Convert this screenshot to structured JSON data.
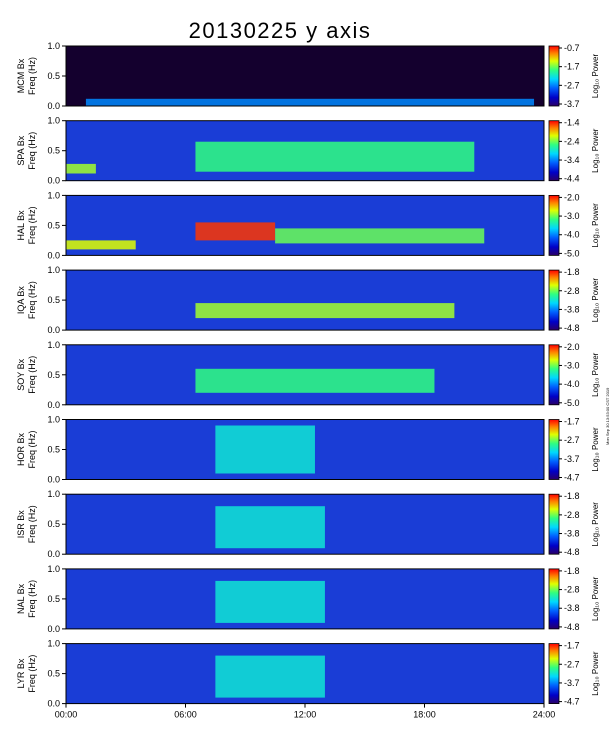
{
  "chart_data": {
    "type": "heatmap",
    "title": "20130225 y axis",
    "xlabel": "",
    "xlim": [
      0,
      24
    ],
    "x_ticks": [
      {
        "value": 0,
        "label": "00:00"
      },
      {
        "value": 6,
        "label": "06:00"
      },
      {
        "value": 12,
        "label": "12:00"
      },
      {
        "value": 18,
        "label": "18:00"
      },
      {
        "value": 24,
        "label": "24:00"
      }
    ],
    "ylim": [
      0,
      1.0
    ],
    "y_ticks": [
      "0.0",
      "0.5",
      "1.0"
    ],
    "ylabel_suffix": "Freq (Hz)",
    "colorbar_label": "Log₁₀ Power",
    "side_stamp": "Mon Sep 30 13:53:00 CST 2019",
    "panels": [
      {
        "station": "MCM Bx",
        "cbar_ticks": [
          "-0.7",
          "-1.7",
          "-2.7",
          "-3.7"
        ],
        "events": [
          {
            "t0": 1.0,
            "t1": 23.5,
            "f0": 0.0,
            "f1": 0.12,
            "level": 0.35
          }
        ]
      },
      {
        "station": "SPA Bx",
        "cbar_ticks": [
          "-1.4",
          "-2.4",
          "-3.4",
          "-4.4"
        ],
        "events": [
          {
            "t0": 0.0,
            "t1": 1.5,
            "f0": 0.12,
            "f1": 0.28,
            "level": 0.7
          },
          {
            "t0": 6.5,
            "t1": 20.5,
            "f0": 0.15,
            "f1": 0.65,
            "level": 0.6
          }
        ]
      },
      {
        "station": "HAL Bx",
        "cbar_ticks": [
          "-2.0",
          "-3.0",
          "-4.0",
          "-5.0"
        ],
        "events": [
          {
            "t0": 0.0,
            "t1": 3.5,
            "f0": 0.1,
            "f1": 0.25,
            "level": 0.75
          },
          {
            "t0": 6.5,
            "t1": 10.5,
            "f0": 0.25,
            "f1": 0.55,
            "level": 0.95
          },
          {
            "t0": 10.5,
            "t1": 21.0,
            "f0": 0.2,
            "f1": 0.45,
            "level": 0.65
          }
        ]
      },
      {
        "station": "IQA Bx",
        "cbar_ticks": [
          "-1.8",
          "-2.8",
          "-3.8",
          "-4.8"
        ],
        "events": [
          {
            "t0": 6.5,
            "t1": 19.5,
            "f0": 0.2,
            "f1": 0.45,
            "level": 0.7
          }
        ]
      },
      {
        "station": "SOY Bx",
        "cbar_ticks": [
          "-2.0",
          "-3.0",
          "-4.0",
          "-5.0"
        ],
        "events": [
          {
            "t0": 6.5,
            "t1": 18.5,
            "f0": 0.2,
            "f1": 0.6,
            "level": 0.6
          }
        ]
      },
      {
        "station": "HOR Bx",
        "cbar_ticks": [
          "-1.7",
          "-2.7",
          "-3.7",
          "-4.7"
        ],
        "events": [
          {
            "t0": 7.5,
            "t1": 12.5,
            "f0": 0.1,
            "f1": 0.9,
            "level": 0.5
          }
        ]
      },
      {
        "station": "ISR Bx",
        "cbar_ticks": [
          "-1.8",
          "-2.8",
          "-3.8",
          "-4.8"
        ],
        "events": [
          {
            "t0": 7.5,
            "t1": 13.0,
            "f0": 0.1,
            "f1": 0.8,
            "level": 0.5
          }
        ]
      },
      {
        "station": "NAL Bx",
        "cbar_ticks": [
          "-1.8",
          "-2.8",
          "-3.8",
          "-4.8"
        ],
        "events": [
          {
            "t0": 7.5,
            "t1": 13.0,
            "f0": 0.1,
            "f1": 0.8,
            "level": 0.5
          }
        ]
      },
      {
        "station": "LYR Bx",
        "cbar_ticks": [
          "-1.7",
          "-2.7",
          "-3.7",
          "-4.7"
        ],
        "events": [
          {
            "t0": 7.5,
            "t1": 13.0,
            "f0": 0.1,
            "f1": 0.8,
            "level": 0.5
          }
        ]
      }
    ]
  }
}
